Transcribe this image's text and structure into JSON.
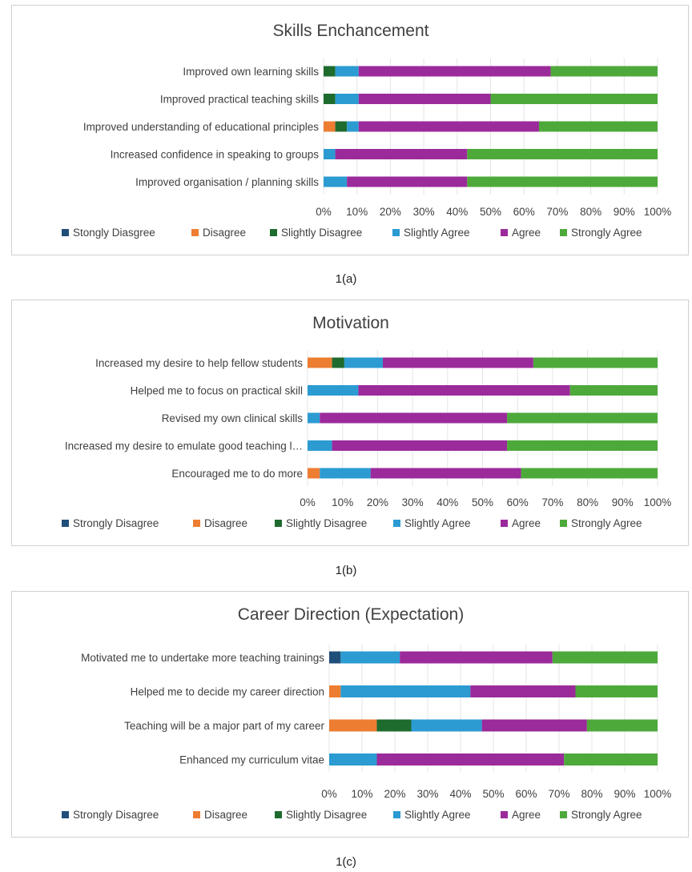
{
  "colors": {
    "strongly_disagree": "#1f4e79",
    "disagree": "#ed7d31",
    "slightly_disagree": "#1e6b2e",
    "slightly_agree": "#2b9bd2",
    "agree": "#9b2a9b",
    "strongly_agree": "#4ea93b"
  },
  "chart_data": [
    {
      "type": "bar",
      "orientation": "horizontal",
      "stacked": "percent",
      "title": "Skills Enchancement",
      "caption": "1(a)",
      "categories": [
        "Improved own learning skills",
        "Improved practical teaching skills",
        "Improved understanding of educational principles",
        "Increased confidence in speaking to groups",
        "Improved organisation / planning skills"
      ],
      "series": [
        {
          "name": "Stongly Diasgree",
          "key": "strongly_disagree",
          "values": [
            0,
            0,
            0,
            0,
            0
          ]
        },
        {
          "name": "Disagree",
          "key": "disagree",
          "values": [
            0,
            0,
            3.5,
            0,
            0
          ]
        },
        {
          "name": "Slightly Disagree",
          "key": "slightly_disagree",
          "values": [
            3.5,
            3.5,
            3.5,
            0,
            0
          ]
        },
        {
          "name": "Slightly Agree",
          "key": "slightly_agree",
          "values": [
            7,
            7,
            3.5,
            3.5,
            7
          ]
        },
        {
          "name": "Agree",
          "key": "agree",
          "values": [
            57.5,
            39.5,
            54,
            39.5,
            36
          ]
        },
        {
          "name": "Strongly Agree",
          "key": "strongly_agree",
          "values": [
            32,
            50,
            35.5,
            57,
            57
          ]
        }
      ],
      "x_ticks": [
        "0%",
        "10%",
        "20%",
        "30%",
        "40%",
        "50%",
        "60%",
        "70%",
        "80%",
        "90%",
        "100%"
      ],
      "xlim": [
        0,
        100
      ],
      "legend": "bottom"
    },
    {
      "type": "bar",
      "orientation": "horizontal",
      "stacked": "percent",
      "title": "Motivation",
      "caption": "1(b)",
      "categories": [
        "Increased my desire to help fellow students",
        "Helped me to focus on practical skill",
        "Revised my own clinical skills",
        "Increased my desire to emulate good teaching l…",
        "Encouraged me to do more"
      ],
      "series": [
        {
          "name": "Strongly Disagree",
          "key": "strongly_disagree",
          "values": [
            0,
            0,
            0,
            0,
            0
          ]
        },
        {
          "name": "Disagree",
          "key": "disagree",
          "values": [
            7,
            0,
            0,
            0,
            3.5
          ]
        },
        {
          "name": "Slightly Disagree",
          "key": "slightly_disagree",
          "values": [
            3.5,
            0,
            0,
            0,
            0
          ]
        },
        {
          "name": "Slightly Agree",
          "key": "slightly_agree",
          "values": [
            11,
            14.5,
            3.5,
            7,
            14.5
          ]
        },
        {
          "name": "Agree",
          "key": "agree",
          "values": [
            43,
            60.5,
            53.5,
            50,
            43
          ]
        },
        {
          "name": "Strongly Agree",
          "key": "strongly_agree",
          "values": [
            35.5,
            25,
            43,
            43,
            39
          ]
        }
      ],
      "x_ticks": [
        "0%",
        "10%",
        "20%",
        "30%",
        "40%",
        "50%",
        "60%",
        "70%",
        "80%",
        "90%",
        "100%"
      ],
      "xlim": [
        0,
        100
      ],
      "legend": "bottom"
    },
    {
      "type": "bar",
      "orientation": "horizontal",
      "stacked": "percent",
      "title": "Career Direction (Expectation)",
      "caption": "1(c)",
      "categories": [
        "Motivated me to undertake more teaching trainings",
        "Helped me to decide my career direction",
        "Teaching will be a major part of my career",
        "Enhanced my curriculum vitae"
      ],
      "series": [
        {
          "name": "Strongly Disagree",
          "key": "strongly_disagree",
          "values": [
            3.5,
            0,
            0,
            0
          ]
        },
        {
          "name": "Disagree",
          "key": "disagree",
          "values": [
            0,
            3.5,
            14.5,
            0
          ]
        },
        {
          "name": "Slightly Disagree",
          "key": "slightly_disagree",
          "values": [
            0,
            0,
            10.5,
            0
          ]
        },
        {
          "name": "Slightly Agree",
          "key": "slightly_agree",
          "values": [
            18,
            39.5,
            21.5,
            14.5
          ]
        },
        {
          "name": "Agree",
          "key": "agree",
          "values": [
            46.5,
            32,
            32,
            57
          ]
        },
        {
          "name": "Strongly Agree",
          "key": "strongly_agree",
          "values": [
            32,
            25,
            21.5,
            28.5
          ]
        }
      ],
      "x_ticks": [
        "0%",
        "10%",
        "20%",
        "30%",
        "40%",
        "50%",
        "60%",
        "70%",
        "80%",
        "90%",
        "100%"
      ],
      "xlim": [
        0,
        100
      ],
      "legend": "bottom"
    }
  ]
}
